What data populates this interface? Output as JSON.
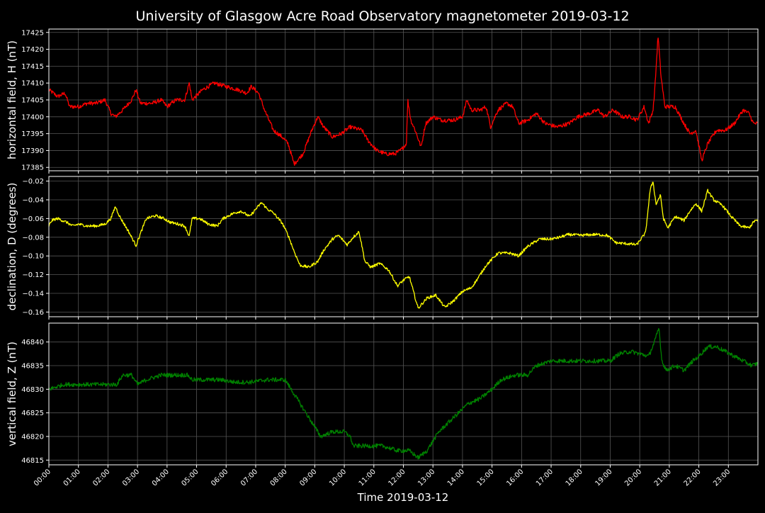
{
  "chart_data": {
    "type": "line",
    "title": "University of Glasgow Acre Road Observatory magnetometer 2019-03-12",
    "xlabel": "Time 2019-03-12",
    "x_ticks": [
      "00:00",
      "01:00",
      "02:00",
      "03:00",
      "04:00",
      "05:00",
      "06:00",
      "07:00",
      "08:00",
      "09:00",
      "10:00",
      "11:00",
      "12:00",
      "13:00",
      "14:00",
      "15:00",
      "16:00",
      "17:00",
      "18:00",
      "19:00",
      "20:00",
      "21:00",
      "22:00",
      "23:00"
    ],
    "x_range_hours": [
      0,
      24
    ],
    "grid": true,
    "background": "#000000",
    "panels": [
      {
        "name": "H",
        "ylabel": "horizontal field, H (nT)",
        "color": "#ff0000",
        "ylim": [
          17384,
          17426
        ],
        "yticks": [
          17385,
          17390,
          17395,
          17400,
          17405,
          17410,
          17415,
          17420,
          17425
        ],
        "noise": 0.6,
        "points": [
          [
            0,
            17408
          ],
          [
            0.3,
            17406
          ],
          [
            0.55,
            17407
          ],
          [
            0.7,
            17403
          ],
          [
            1.0,
            17403
          ],
          [
            1.3,
            17404
          ],
          [
            1.6,
            17404
          ],
          [
            1.9,
            17405
          ],
          [
            2.1,
            17401
          ],
          [
            2.25,
            17400
          ],
          [
            2.5,
            17402
          ],
          [
            2.8,
            17405
          ],
          [
            2.95,
            17408
          ],
          [
            3.1,
            17404
          ],
          [
            3.5,
            17404
          ],
          [
            3.8,
            17405
          ],
          [
            4.0,
            17403
          ],
          [
            4.3,
            17405
          ],
          [
            4.6,
            17405
          ],
          [
            4.75,
            17410
          ],
          [
            4.85,
            17405
          ],
          [
            5.2,
            17408
          ],
          [
            5.6,
            17410
          ],
          [
            6.0,
            17409
          ],
          [
            6.4,
            17408
          ],
          [
            6.7,
            17407
          ],
          [
            6.85,
            17409
          ],
          [
            7.1,
            17407
          ],
          [
            7.3,
            17402
          ],
          [
            7.6,
            17396
          ],
          [
            7.9,
            17394
          ],
          [
            8.1,
            17392
          ],
          [
            8.3,
            17386
          ],
          [
            8.6,
            17389
          ],
          [
            8.9,
            17396
          ],
          [
            9.1,
            17400
          ],
          [
            9.3,
            17397
          ],
          [
            9.6,
            17394
          ],
          [
            9.9,
            17395
          ],
          [
            10.2,
            17397
          ],
          [
            10.6,
            17396
          ],
          [
            10.8,
            17393
          ],
          [
            11.1,
            17390
          ],
          [
            11.4,
            17389
          ],
          [
            11.7,
            17389
          ],
          [
            11.9,
            17390
          ],
          [
            12.1,
            17392
          ],
          [
            12.15,
            17405
          ],
          [
            12.25,
            17399
          ],
          [
            12.4,
            17396
          ],
          [
            12.6,
            17391
          ],
          [
            12.75,
            17398
          ],
          [
            13.0,
            17400
          ],
          [
            13.3,
            17399
          ],
          [
            13.7,
            17399
          ],
          [
            14.0,
            17400
          ],
          [
            14.15,
            17405
          ],
          [
            14.3,
            17402
          ],
          [
            14.6,
            17402
          ],
          [
            14.8,
            17403
          ],
          [
            14.95,
            17397
          ],
          [
            15.2,
            17402
          ],
          [
            15.5,
            17404
          ],
          [
            15.7,
            17403
          ],
          [
            15.9,
            17398
          ],
          [
            16.2,
            17399
          ],
          [
            16.5,
            17401
          ],
          [
            16.8,
            17398
          ],
          [
            17.2,
            17397
          ],
          [
            17.6,
            17398
          ],
          [
            17.9,
            17400
          ],
          [
            18.3,
            17401
          ],
          [
            18.6,
            17402
          ],
          [
            18.8,
            17400
          ],
          [
            19.1,
            17402
          ],
          [
            19.4,
            17400
          ],
          [
            19.7,
            17400
          ],
          [
            19.9,
            17399
          ],
          [
            20.15,
            17403
          ],
          [
            20.3,
            17398
          ],
          [
            20.45,
            17402
          ],
          [
            20.5,
            17407
          ],
          [
            20.62,
            17424
          ],
          [
            20.72,
            17412
          ],
          [
            20.85,
            17403
          ],
          [
            21.2,
            17403
          ],
          [
            21.5,
            17398
          ],
          [
            21.7,
            17395
          ],
          [
            21.9,
            17396
          ],
          [
            22.1,
            17387
          ],
          [
            22.3,
            17392
          ],
          [
            22.6,
            17396
          ],
          [
            22.9,
            17396
          ],
          [
            23.2,
            17398
          ],
          [
            23.5,
            17402
          ],
          [
            23.7,
            17401
          ],
          [
            23.85,
            17398
          ],
          [
            24,
            17398
          ]
        ]
      },
      {
        "name": "D",
        "ylabel": "declination, D (degrees)",
        "color": "#ffff00",
        "ylim": [
          -0.165,
          -0.015
        ],
        "yticks": [
          -0.16,
          -0.14,
          -0.12,
          -0.1,
          -0.08,
          -0.06,
          -0.04,
          -0.02
        ],
        "noise": 0.0015,
        "points": [
          [
            0,
            -0.068
          ],
          [
            0.1,
            -0.062
          ],
          [
            0.3,
            -0.06
          ],
          [
            0.6,
            -0.064
          ],
          [
            0.8,
            -0.068
          ],
          [
            1.0,
            -0.066
          ],
          [
            1.3,
            -0.068
          ],
          [
            1.6,
            -0.068
          ],
          [
            1.9,
            -0.066
          ],
          [
            2.1,
            -0.06
          ],
          [
            2.25,
            -0.047
          ],
          [
            2.4,
            -0.058
          ],
          [
            2.7,
            -0.074
          ],
          [
            2.95,
            -0.089
          ],
          [
            3.1,
            -0.076
          ],
          [
            3.3,
            -0.06
          ],
          [
            3.6,
            -0.057
          ],
          [
            3.9,
            -0.06
          ],
          [
            4.1,
            -0.064
          ],
          [
            4.4,
            -0.066
          ],
          [
            4.6,
            -0.068
          ],
          [
            4.75,
            -0.079
          ],
          [
            4.85,
            -0.06
          ],
          [
            5.1,
            -0.06
          ],
          [
            5.4,
            -0.066
          ],
          [
            5.7,
            -0.068
          ],
          [
            5.9,
            -0.06
          ],
          [
            6.2,
            -0.055
          ],
          [
            6.5,
            -0.052
          ],
          [
            6.8,
            -0.058
          ],
          [
            7.0,
            -0.05
          ],
          [
            7.2,
            -0.043
          ],
          [
            7.4,
            -0.05
          ],
          [
            7.6,
            -0.054
          ],
          [
            7.9,
            -0.065
          ],
          [
            8.1,
            -0.078
          ],
          [
            8.3,
            -0.095
          ],
          [
            8.5,
            -0.11
          ],
          [
            8.8,
            -0.112
          ],
          [
            9.1,
            -0.106
          ],
          [
            9.3,
            -0.094
          ],
          [
            9.6,
            -0.082
          ],
          [
            9.8,
            -0.078
          ],
          [
            10.1,
            -0.088
          ],
          [
            10.3,
            -0.08
          ],
          [
            10.5,
            -0.074
          ],
          [
            10.7,
            -0.106
          ],
          [
            10.9,
            -0.112
          ],
          [
            11.2,
            -0.108
          ],
          [
            11.5,
            -0.115
          ],
          [
            11.8,
            -0.132
          ],
          [
            12.0,
            -0.126
          ],
          [
            12.2,
            -0.122
          ],
          [
            12.4,
            -0.145
          ],
          [
            12.5,
            -0.156
          ],
          [
            12.8,
            -0.145
          ],
          [
            13.1,
            -0.142
          ],
          [
            13.4,
            -0.155
          ],
          [
            13.7,
            -0.148
          ],
          [
            14.0,
            -0.138
          ],
          [
            14.3,
            -0.134
          ],
          [
            14.5,
            -0.125
          ],
          [
            14.8,
            -0.11
          ],
          [
            15.2,
            -0.097
          ],
          [
            15.6,
            -0.097
          ],
          [
            15.9,
            -0.1
          ],
          [
            16.2,
            -0.09
          ],
          [
            16.6,
            -0.082
          ],
          [
            17.0,
            -0.082
          ],
          [
            17.3,
            -0.08
          ],
          [
            17.6,
            -0.077
          ],
          [
            18.0,
            -0.078
          ],
          [
            18.5,
            -0.077
          ],
          [
            18.9,
            -0.078
          ],
          [
            19.2,
            -0.086
          ],
          [
            19.6,
            -0.087
          ],
          [
            19.9,
            -0.088
          ],
          [
            20.2,
            -0.075
          ],
          [
            20.35,
            -0.03
          ],
          [
            20.45,
            -0.02
          ],
          [
            20.55,
            -0.045
          ],
          [
            20.7,
            -0.035
          ],
          [
            20.8,
            -0.06
          ],
          [
            20.95,
            -0.07
          ],
          [
            21.2,
            -0.058
          ],
          [
            21.5,
            -0.062
          ],
          [
            21.7,
            -0.052
          ],
          [
            21.9,
            -0.044
          ],
          [
            22.1,
            -0.052
          ],
          [
            22.3,
            -0.03
          ],
          [
            22.5,
            -0.04
          ],
          [
            22.8,
            -0.046
          ],
          [
            23.1,
            -0.058
          ],
          [
            23.4,
            -0.068
          ],
          [
            23.7,
            -0.07
          ],
          [
            23.9,
            -0.062
          ],
          [
            24,
            -0.063
          ]
        ]
      },
      {
        "name": "Z",
        "ylabel": "vertical field, Z (nT)",
        "color": "#008000",
        "ylim": [
          46814,
          46844
        ],
        "yticks": [
          46815,
          46820,
          46825,
          46830,
          46835,
          46840
        ],
        "noise": 0.45,
        "points": [
          [
            0,
            46830
          ],
          [
            0.5,
            46831
          ],
          [
            1.0,
            46831
          ],
          [
            1.5,
            46831
          ],
          [
            2.0,
            46831
          ],
          [
            2.3,
            46831
          ],
          [
            2.5,
            46833
          ],
          [
            2.8,
            46833
          ],
          [
            3.0,
            46831
          ],
          [
            3.3,
            46832
          ],
          [
            3.8,
            46833
          ],
          [
            4.3,
            46833
          ],
          [
            4.7,
            46833
          ],
          [
            4.85,
            46832
          ],
          [
            5.3,
            46832
          ],
          [
            5.8,
            46832
          ],
          [
            6.3,
            46831.5
          ],
          [
            6.8,
            46831.5
          ],
          [
            7.4,
            46832
          ],
          [
            8.0,
            46832
          ],
          [
            8.3,
            46829
          ],
          [
            8.6,
            46826
          ],
          [
            8.9,
            46823
          ],
          [
            9.2,
            46820
          ],
          [
            9.6,
            46821
          ],
          [
            10.0,
            46821
          ],
          [
            10.2,
            46820
          ],
          [
            10.3,
            46818
          ],
          [
            10.8,
            46818
          ],
          [
            11.3,
            46818
          ],
          [
            11.8,
            46817
          ],
          [
            12.2,
            46817
          ],
          [
            12.5,
            46815.5
          ],
          [
            12.8,
            46817
          ],
          [
            13.2,
            46821
          ],
          [
            13.7,
            46824
          ],
          [
            14.2,
            46827
          ],
          [
            14.6,
            46828
          ],
          [
            15.0,
            46830
          ],
          [
            15.3,
            46832
          ],
          [
            15.8,
            46833
          ],
          [
            16.2,
            46833
          ],
          [
            16.5,
            46835
          ],
          [
            17.0,
            46836
          ],
          [
            17.5,
            46836
          ],
          [
            18.0,
            46836
          ],
          [
            18.5,
            46836
          ],
          [
            19.0,
            46836
          ],
          [
            19.3,
            46837.5
          ],
          [
            19.7,
            46838
          ],
          [
            20.0,
            46837.5
          ],
          [
            20.3,
            46837
          ],
          [
            20.5,
            46840
          ],
          [
            20.65,
            46843
          ],
          [
            20.75,
            46836
          ],
          [
            20.9,
            46834
          ],
          [
            21.2,
            46835
          ],
          [
            21.5,
            46834
          ],
          [
            21.8,
            46836
          ],
          [
            22.0,
            46837
          ],
          [
            22.3,
            46839
          ],
          [
            22.6,
            46839
          ],
          [
            22.9,
            46838
          ],
          [
            23.2,
            46837
          ],
          [
            23.5,
            46836
          ],
          [
            23.8,
            46835
          ],
          [
            24,
            46835.5
          ]
        ]
      }
    ]
  }
}
